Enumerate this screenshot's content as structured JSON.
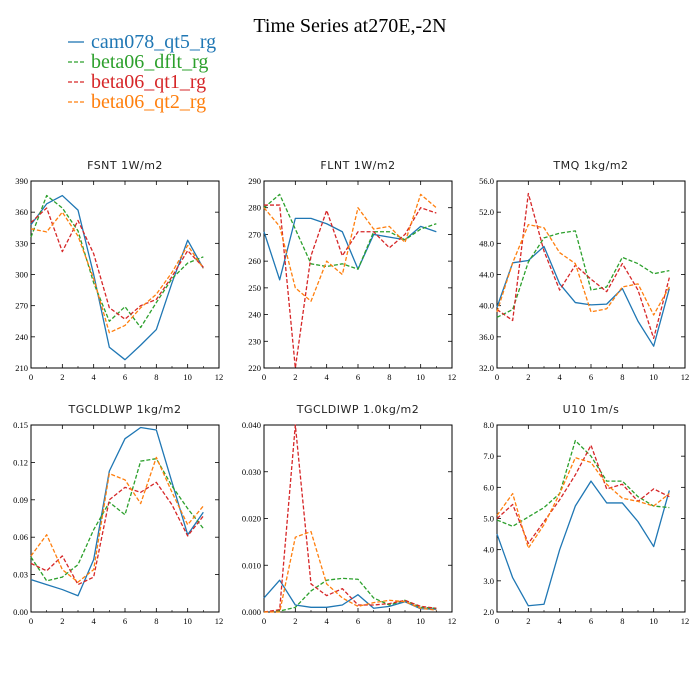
{
  "figure": {
    "title": "Time Series at270E,-2N"
  },
  "legend": [
    {
      "name": "cam078_qt5_rg",
      "color": "#1f77b4",
      "dash": "solid"
    },
    {
      "name": "beta06_dflt_rg",
      "color": "#2ca02c",
      "dash": "dashed"
    },
    {
      "name": "beta06_qt1_rg",
      "color": "#d62728",
      "dash": "dashed"
    },
    {
      "name": "beta06_qt2_rg",
      "color": "#ff7f0e",
      "dash": "dashed"
    }
  ],
  "chart_data": [
    {
      "type": "line",
      "title": "FSNT   1W/m2",
      "x": [
        0,
        1,
        2,
        3,
        4,
        5,
        6,
        7,
        8,
        9,
        10,
        11
      ],
      "xlim": [
        0,
        12
      ],
      "xticks": [
        0,
        2,
        4,
        6,
        8,
        10,
        12
      ],
      "xtick_labels": [
        "0",
        "2",
        "4",
        "6",
        "8",
        "10",
        "12"
      ],
      "ylim": [
        210,
        390
      ],
      "yticks": [
        210,
        240,
        270,
        300,
        330,
        360,
        390
      ],
      "ytick_labels": [
        "210",
        "240",
        "270",
        "300",
        "330",
        "360",
        "390"
      ],
      "series": [
        {
          "name": "cam078_qt5_rg",
          "values": [
            348,
            368,
            376,
            362,
            300,
            230,
            218,
            232,
            247,
            292,
            333,
            306
          ]
        },
        {
          "name": "beta06_dflt_rg",
          "values": [
            336,
            376,
            364,
            342,
            292,
            255,
            269,
            249,
            273,
            296,
            311,
            317
          ]
        },
        {
          "name": "beta06_qt1_rg",
          "values": [
            350,
            364,
            322,
            352,
            320,
            268,
            257,
            270,
            276,
            298,
            323,
            307
          ]
        },
        {
          "name": "beta06_qt2_rg",
          "values": [
            344,
            341,
            360,
            337,
            296,
            244,
            251,
            268,
            281,
            302,
            328,
            306
          ]
        }
      ]
    },
    {
      "type": "line",
      "title": "FLNT   1W/m2",
      "x": [
        0,
        1,
        2,
        3,
        4,
        5,
        6,
        7,
        8,
        9,
        10,
        11
      ],
      "xlim": [
        0,
        12
      ],
      "xticks": [
        0,
        2,
        4,
        6,
        8,
        10,
        12
      ],
      "xtick_labels": [
        "0",
        "2",
        "4",
        "6",
        "8",
        "10",
        "12"
      ],
      "ylim": [
        220,
        290
      ],
      "yticks": [
        220,
        230,
        240,
        250,
        260,
        270,
        280,
        290
      ],
      "ytick_labels": [
        "220",
        "230",
        "240",
        "250",
        "260",
        "270",
        "280",
        "290"
      ],
      "series": [
        {
          "name": "cam078_qt5_rg",
          "values": [
            271,
            253,
            276,
            276,
            274,
            271,
            257,
            270,
            269,
            268,
            273,
            271
          ]
        },
        {
          "name": "beta06_dflt_rg",
          "values": [
            280,
            285,
            272,
            259,
            258,
            259,
            257,
            271,
            271,
            268,
            272,
            274
          ]
        },
        {
          "name": "beta06_qt1_rg",
          "values": [
            281,
            281,
            220,
            262,
            279,
            262,
            271,
            271,
            265,
            270,
            280,
            278
          ]
        },
        {
          "name": "beta06_qt2_rg",
          "values": [
            280,
            273,
            250,
            245,
            260,
            255,
            280,
            272,
            273,
            267,
            285,
            280
          ]
        }
      ]
    },
    {
      "type": "line",
      "title": "TMQ   1kg/m2",
      "x": [
        0,
        1,
        2,
        3,
        4,
        5,
        6,
        7,
        8,
        9,
        10,
        11
      ],
      "xlim": [
        0,
        12
      ],
      "xticks": [
        0,
        2,
        4,
        6,
        8,
        10,
        12
      ],
      "xtick_labels": [
        "0",
        "2",
        "4",
        "6",
        "8",
        "10",
        "12"
      ],
      "ylim": [
        32,
        56
      ],
      "yticks": [
        32,
        36,
        40,
        44,
        48,
        52,
        56
      ],
      "ytick_labels": [
        "32.0",
        "36.0",
        "40.0",
        "44.0",
        "48.0",
        "52.0",
        "56.0"
      ],
      "series": [
        {
          "name": "cam078_qt5_rg",
          "values": [
            39.8,
            45.5,
            45.8,
            47.6,
            42.8,
            40.4,
            40.1,
            40.2,
            42.2,
            38.0,
            34.8,
            42.2
          ]
        },
        {
          "name": "beta06_dflt_rg",
          "values": [
            38.5,
            39.5,
            45.6,
            48.7,
            49.3,
            49.6,
            42.0,
            42.4,
            46.2,
            45.4,
            44.1,
            44.5
          ]
        },
        {
          "name": "beta06_qt1_rg",
          "values": [
            39.5,
            38.1,
            54.4,
            47.0,
            42.0,
            45.2,
            43.4,
            41.8,
            45.4,
            42.0,
            35.8,
            43.6
          ]
        },
        {
          "name": "beta06_qt2_rg",
          "values": [
            39.2,
            45.5,
            50.4,
            50.0,
            46.8,
            45.4,
            39.2,
            39.6,
            42.4,
            42.8,
            38.8,
            42.4
          ]
        }
      ]
    },
    {
      "type": "line",
      "title": "TGCLDLWP   1kg/m2",
      "x": [
        0,
        1,
        2,
        3,
        4,
        5,
        6,
        7,
        8,
        9,
        10,
        11
      ],
      "xlim": [
        0,
        12
      ],
      "xticks": [
        0,
        2,
        4,
        6,
        8,
        10,
        12
      ],
      "xtick_labels": [
        "0",
        "2",
        "4",
        "6",
        "8",
        "10",
        "12"
      ],
      "ylim": [
        0,
        0.15
      ],
      "yticks": [
        0,
        0.03,
        0.06,
        0.09,
        0.12,
        0.15
      ],
      "ytick_labels": [
        "0.00",
        "0.03",
        "0.06",
        "0.09",
        "0.12",
        "0.15"
      ],
      "series": [
        {
          "name": "cam078_qt5_rg",
          "values": [
            0.026,
            0.022,
            0.018,
            0.013,
            0.042,
            0.113,
            0.139,
            0.148,
            0.146,
            0.104,
            0.062,
            0.08
          ]
        },
        {
          "name": "beta06_dflt_rg",
          "values": [
            0.044,
            0.025,
            0.028,
            0.038,
            0.066,
            0.088,
            0.078,
            0.121,
            0.123,
            0.101,
            0.083,
            0.067
          ]
        },
        {
          "name": "beta06_qt1_rg",
          "values": [
            0.039,
            0.033,
            0.045,
            0.022,
            0.028,
            0.09,
            0.1,
            0.096,
            0.104,
            0.086,
            0.061,
            0.077
          ]
        },
        {
          "name": "beta06_qt2_rg",
          "values": [
            0.045,
            0.062,
            0.034,
            0.024,
            0.034,
            0.111,
            0.106,
            0.087,
            0.124,
            0.096,
            0.07,
            0.085
          ]
        }
      ]
    },
    {
      "type": "line",
      "title": "TGCLDIWP   1.0kg/m2",
      "x": [
        0,
        1,
        2,
        3,
        4,
        5,
        6,
        7,
        8,
        9,
        10,
        11
      ],
      "xlim": [
        0,
        12
      ],
      "xticks": [
        0,
        2,
        4,
        6,
        8,
        10,
        12
      ],
      "xtick_labels": [
        "0",
        "2",
        "4",
        "6",
        "8",
        "10",
        "12"
      ],
      "ylim": [
        0,
        0.04
      ],
      "yticks": [
        0,
        0.01,
        0.02,
        0.03,
        0.04
      ],
      "ytick_labels": [
        "0.000",
        "0.010",
        "0.020",
        "0.030",
        "0.040"
      ],
      "series": [
        {
          "name": "cam078_qt5_rg",
          "values": [
            0.003,
            0.0068,
            0.0015,
            0.001,
            0.001,
            0.0015,
            0.0037,
            0.0008,
            0.0012,
            0.0022,
            0.0007,
            0.0006
          ]
        },
        {
          "name": "beta06_dflt_rg",
          "values": [
            0.0,
            0.0002,
            0.001,
            0.0045,
            0.0068,
            0.0072,
            0.007,
            0.003,
            0.0015,
            0.0025,
            0.001,
            0.0008
          ]
        },
        {
          "name": "beta06_qt1_rg",
          "values": [
            0.0,
            0.0005,
            0.04,
            0.006,
            0.0035,
            0.005,
            0.0015,
            0.0015,
            0.0018,
            0.0025,
            0.0012,
            0.0008
          ]
        },
        {
          "name": "beta06_qt2_rg",
          "values": [
            0.0,
            0.0,
            0.016,
            0.0172,
            0.006,
            0.003,
            0.0012,
            0.002,
            0.0025,
            0.0022,
            0.0008,
            0.0004
          ]
        }
      ]
    },
    {
      "type": "line",
      "title": "U10   1m/s",
      "x": [
        0,
        1,
        2,
        3,
        4,
        5,
        6,
        7,
        8,
        9,
        10,
        11
      ],
      "xlim": [
        0,
        12
      ],
      "xticks": [
        0,
        2,
        4,
        6,
        8,
        10,
        12
      ],
      "xtick_labels": [
        "0",
        "2",
        "4",
        "6",
        "8",
        "10",
        "12"
      ],
      "ylim": [
        2,
        8
      ],
      "yticks": [
        2,
        3,
        4,
        5,
        6,
        7,
        8
      ],
      "ytick_labels": [
        "2.0",
        "3.0",
        "4.0",
        "5.0",
        "6.0",
        "7.0",
        "8.0"
      ],
      "series": [
        {
          "name": "cam078_qt5_rg",
          "values": [
            4.5,
            3.1,
            2.2,
            2.25,
            4.0,
            5.4,
            6.2,
            5.5,
            5.5,
            4.9,
            4.1,
            5.9
          ]
        },
        {
          "name": "beta06_dflt_rg",
          "values": [
            4.95,
            4.75,
            5.05,
            5.35,
            5.8,
            7.5,
            7.0,
            6.2,
            6.2,
            5.7,
            5.4,
            5.35
          ]
        },
        {
          "name": "beta06_qt1_rg",
          "values": [
            5.0,
            5.45,
            4.2,
            4.9,
            5.6,
            6.4,
            7.35,
            5.95,
            6.1,
            5.55,
            5.95,
            5.7
          ]
        },
        {
          "name": "beta06_qt2_rg",
          "values": [
            5.1,
            5.8,
            4.05,
            4.8,
            5.8,
            6.95,
            6.8,
            6.1,
            5.65,
            5.55,
            5.4,
            5.8
          ]
        }
      ]
    }
  ]
}
